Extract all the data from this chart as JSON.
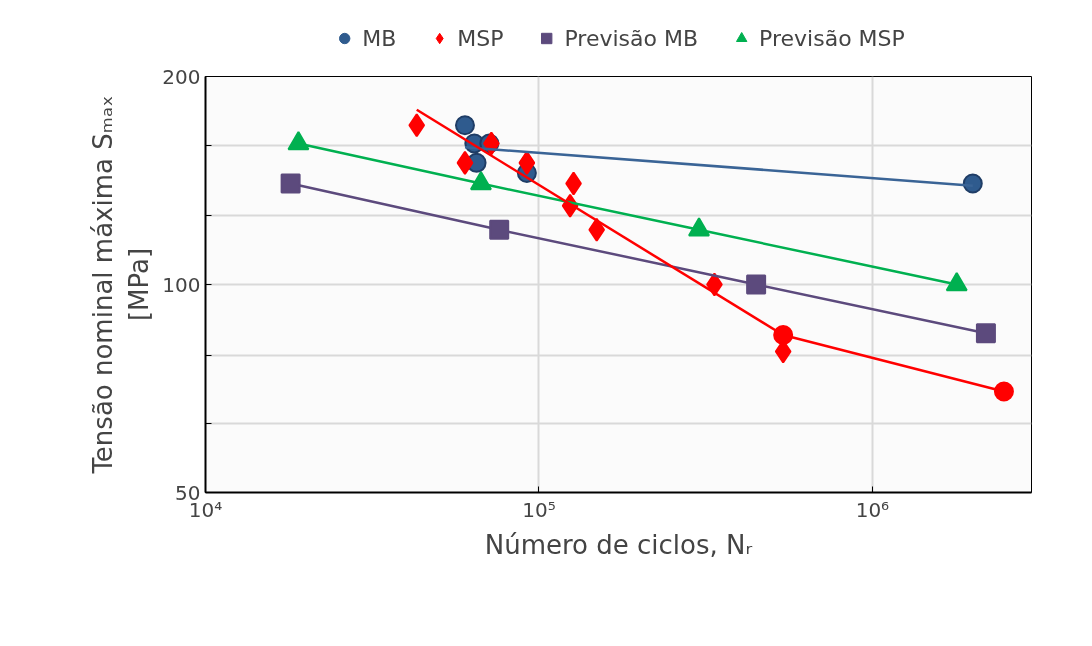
{
  "chart_data": {
    "type": "scatter",
    "xlabel": "Número de ciclos, Nᵣ",
    "ylabel": "Tensão nominal máxima Sₘₐₓ\n[MPa]",
    "log": "xy",
    "grid": true,
    "legend": "top",
    "xlim": [
      10000,
      3000000
    ],
    "xticks": [
      {
        "value": 10000,
        "label": "10⁴"
      },
      {
        "value": 100000,
        "label": "10⁵"
      },
      {
        "value": 1000000,
        "label": "10⁶"
      }
    ],
    "ylim": [
      50,
      200
    ],
    "yticks": [
      50,
      {
        "value": 63,
        "label": null
      },
      {
        "value": 79,
        "label": null
      },
      100,
      {
        "value": 126,
        "label": null
      },
      {
        "value": 159,
        "label": null
      },
      200
    ],
    "series": [
      {
        "name": "MB",
        "marker": "circle",
        "color": "#2f5b8e",
        "x": [
          60000,
          64000,
          65000,
          71000,
          92000,
          2000000
        ],
        "values": [
          170,
          160,
          150,
          160,
          145,
          140
        ]
      },
      {
        "name": "MSP",
        "marker": "diamond",
        "color": "#ff0000",
        "x": [
          43000,
          60000,
          72000,
          92000,
          127000,
          124000,
          149000,
          336000,
          540000
        ],
        "values": [
          170,
          150,
          160,
          150,
          140,
          130,
          120,
          100,
          80
        ]
      },
      {
        "name": "Previsão MB",
        "type": "line",
        "marker": "square",
        "color": "#5c4a7d",
        "x": [
          18000,
          76000,
          448000,
          2190000
        ],
        "values": [
          140,
          120,
          100,
          85
        ]
      },
      {
        "name": "Previsão MSP",
        "type": "line",
        "marker": "triangle",
        "color": "#00b050",
        "x": [
          19000,
          67000,
          302000,
          1790000
        ],
        "values": [
          160,
          140,
          120,
          100
        ]
      },
      {
        "type": "line",
        "marker": "none",
        "color": "#3a6496",
        "x": [
          60000,
          2000000
        ],
        "values": [
          158,
          139
        ]
      },
      {
        "type": "line",
        "color": "#ff0000",
        "x": [
          43000,
          540000
        ],
        "values": [
          179,
          84.5
        ]
      },
      {
        "type": "line",
        "marker": "circle",
        "color": "#ff0000",
        "x": [
          540000,
          2480000
        ],
        "values": [
          84.5,
          70
        ]
      }
    ]
  }
}
